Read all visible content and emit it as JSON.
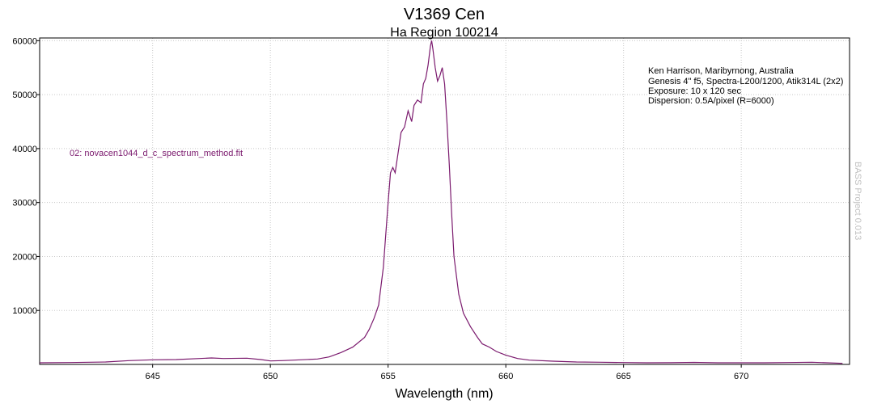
{
  "chart_data": {
    "type": "line",
    "title": "V1369 Cen",
    "subtitle": "Ha Region 100214",
    "xlabel": "Wavelength (nm)",
    "ylabel": "",
    "xlim": [
      640.2,
      674.6
    ],
    "ylim": [
      0,
      60500
    ],
    "xticks": [
      645,
      650,
      655,
      660,
      665,
      670
    ],
    "yticks": [
      10000,
      20000,
      30000,
      40000,
      50000,
      60000
    ],
    "grid": true,
    "annotations": [
      "Ken Harrison, Maribyrnong, Australia",
      "Genesis 4\" f5, Spectra-L200/1200, Atik314L (2x2)",
      "Exposure: 10 x 120 sec",
      "Dispersion: 0.5A/pixel (R=6000)"
    ],
    "watermark": "BASS Project 0.013",
    "series": [
      {
        "name": "02: novacen1044_d_c_spectrum_method.fit",
        "color": "#7b1a6e",
        "x": [
          640.2,
          641.5,
          643.0,
          644.0,
          645.0,
          646.0,
          647.0,
          647.5,
          648.0,
          649.0,
          649.6,
          650.0,
          650.5,
          651.0,
          652.0,
          652.5,
          653.0,
          653.5,
          654.0,
          654.2,
          654.4,
          654.6,
          654.8,
          655.0,
          655.1,
          655.2,
          655.3,
          655.45,
          655.55,
          655.7,
          655.85,
          656.0,
          656.1,
          656.25,
          656.4,
          656.5,
          656.6,
          656.7,
          656.8,
          656.85,
          656.9,
          657.0,
          657.1,
          657.2,
          657.3,
          657.4,
          657.5,
          657.6,
          657.7,
          657.8,
          658.0,
          658.2,
          658.5,
          658.8,
          659.0,
          659.3,
          659.6,
          660.0,
          660.5,
          661.0,
          662.0,
          663.0,
          664.0,
          665.0,
          666.0,
          667.0,
          668.0,
          669.0,
          670.0,
          671.0,
          672.0,
          673.0,
          674.3
        ],
        "values": [
          300,
          350,
          450,
          700,
          850,
          900,
          1100,
          1200,
          1100,
          1150,
          900,
          650,
          700,
          800,
          1000,
          1400,
          2200,
          3200,
          5000,
          6500,
          8500,
          11000,
          18000,
          30000,
          35500,
          36500,
          35500,
          40000,
          43000,
          44000,
          47000,
          45000,
          48000,
          49000,
          48500,
          52000,
          53000,
          55500,
          59000,
          60000,
          58500,
          55000,
          52500,
          53500,
          55000,
          52000,
          45000,
          37000,
          28000,
          20000,
          13000,
          9500,
          7000,
          5000,
          3800,
          3200,
          2400,
          1700,
          1100,
          800,
          600,
          450,
          400,
          350,
          300,
          320,
          380,
          300,
          300,
          300,
          350,
          400,
          200
        ]
      }
    ]
  }
}
